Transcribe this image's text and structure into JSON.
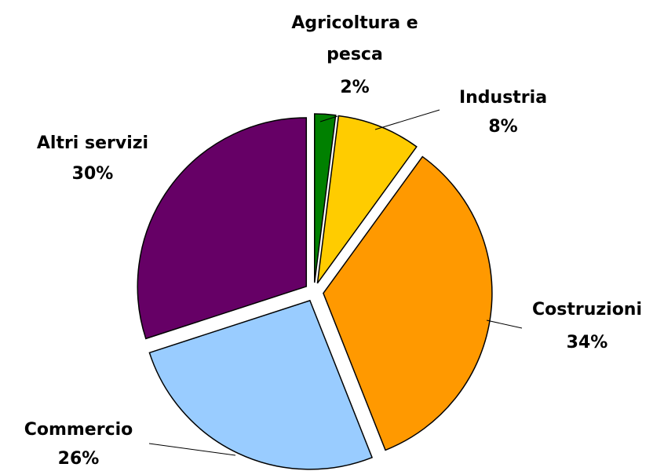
{
  "chart_data": {
    "type": "pie",
    "categories": [
      "Agricoltura e pesca",
      "Industria",
      "Costruzioni",
      "Commercio",
      "Altri servizi"
    ],
    "values": [
      2,
      8,
      34,
      26,
      30
    ],
    "value_labels": [
      "2%",
      "8%",
      "34%",
      "26%",
      "30%"
    ],
    "colors": [
      "#008000",
      "#ffcc00",
      "#ff9900",
      "#99ccff",
      "#660066"
    ]
  }
}
